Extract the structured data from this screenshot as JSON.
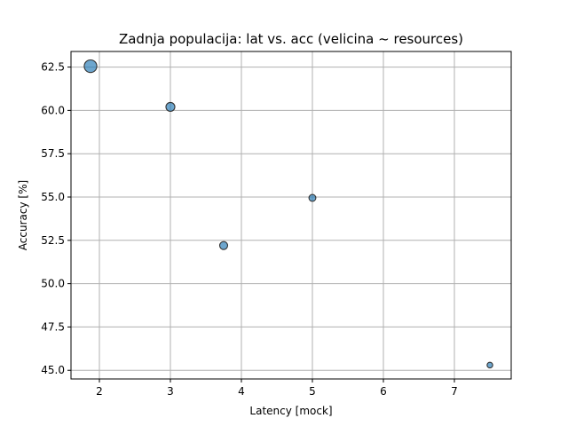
{
  "chart_data": {
    "type": "scatter",
    "title": "Zadnja populacija: lat vs. acc (velicina ~ resources)",
    "xlabel": "Latency [mock]",
    "ylabel": "Accuracy [%]",
    "xlim": [
      1.6,
      7.8
    ],
    "ylim": [
      44.5,
      63.4
    ],
    "xticks": [
      2,
      3,
      4,
      5,
      6,
      7
    ],
    "yticks": [
      45.0,
      47.5,
      50.0,
      52.5,
      55.0,
      57.5,
      60.0,
      62.5
    ],
    "xtick_labels": [
      "2",
      "3",
      "4",
      "5",
      "6",
      "7"
    ],
    "ytick_labels": [
      "45.0",
      "47.5",
      "50.0",
      "52.5",
      "55.0",
      "57.5",
      "60.0",
      "62.5"
    ],
    "grid": true,
    "point_color": "#1f77b4",
    "points": [
      {
        "x": 1.875,
        "y": 62.55,
        "size": 150
      },
      {
        "x": 3.0,
        "y": 60.2,
        "size": 75
      },
      {
        "x": 3.75,
        "y": 52.2,
        "size": 60
      },
      {
        "x": 5.0,
        "y": 54.95,
        "size": 45
      },
      {
        "x": 7.5,
        "y": 45.3,
        "size": 30
      }
    ]
  }
}
